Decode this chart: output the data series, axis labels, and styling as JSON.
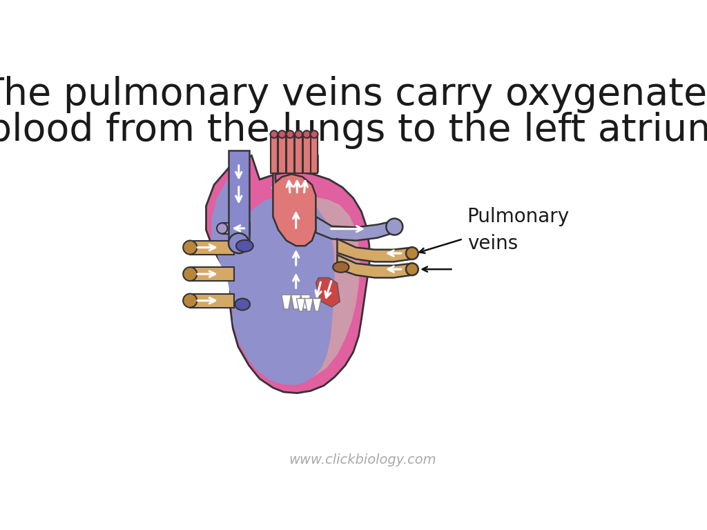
{
  "title_line1": "The pulmonary veins carry oxygenated",
  "title_line2": "blood from the lungs to the left atrium",
  "label_text": "Pulmonary\nveins",
  "website": "www.clickbiology.com",
  "bg_color": "#ffffff",
  "title_color": "#1a1a1a",
  "heart_pink": "#e060a0",
  "heart_blue": "#8888cc",
  "heart_blue_dark": "#7070bb",
  "heart_purple": "#9988cc",
  "heart_red": "#e07878",
  "heart_red_dark": "#cc5566",
  "vena_color": "#8888cc",
  "pulm_art_color": "#9999cc",
  "pulm_vein_color": "#d4a866",
  "pulm_vein_dark": "#b8853a",
  "left_vessel_color": "#d4a866",
  "label_fontsize": 20,
  "title_fontsize": 40,
  "website_fontsize": 14
}
